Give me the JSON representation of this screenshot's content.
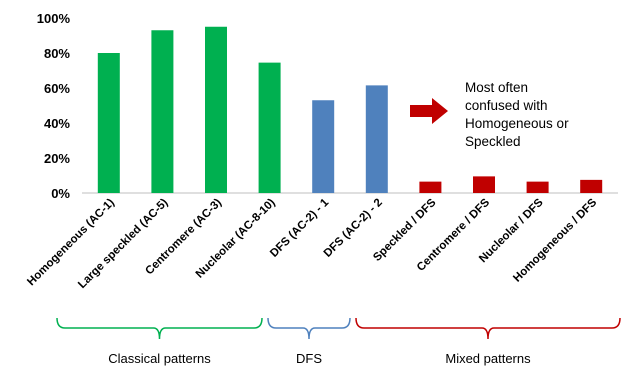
{
  "chart_data": {
    "type": "bar",
    "categories": [
      "Homogeneous (AC-1)",
      "Large speckled (AC-5)",
      "Centromere (AC-3)",
      "Nucleolar (AC-8-10)",
      "DFS (AC-2) - 1",
      "DFS (AC-2) - 2",
      "Speckled / DFS",
      "Centromere / DFS",
      "Nucleolar / DFS",
      "Homogeneous / DFS"
    ],
    "values": [
      80,
      93,
      95,
      74.5,
      53,
      61.5,
      6.5,
      9.5,
      6.5,
      7.5
    ],
    "bar_colors": [
      "#00b050",
      "#00b050",
      "#00b050",
      "#00b050",
      "#4f81bd",
      "#4f81bd",
      "#c00000",
      "#c00000",
      "#c00000",
      "#c00000"
    ],
    "ylim": [
      0,
      100
    ],
    "yticks": [
      "0%",
      "20%",
      "40%",
      "60%",
      "80%",
      "100%"
    ],
    "grid": false,
    "annotation": {
      "lines": [
        "Most often",
        "confused with",
        "Homogeneous or",
        "Speckled"
      ],
      "arrow_color": "#c00000"
    },
    "groups": [
      {
        "label": "Classical patterns",
        "from": 0,
        "to": 3,
        "color": "#00b050"
      },
      {
        "label": "DFS",
        "from": 4,
        "to": 5,
        "color": "#4f81bd"
      },
      {
        "label": "Mixed patterns",
        "from": 6,
        "to": 9,
        "color": "#c00000"
      }
    ],
    "xlabel": "",
    "ylabel": ""
  }
}
